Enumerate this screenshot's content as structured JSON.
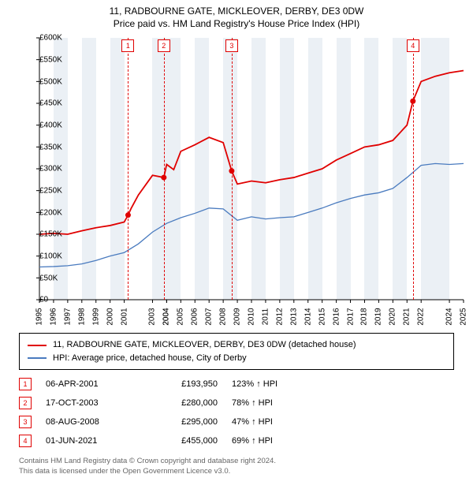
{
  "title_line1": "11, RADBOURNE GATE, MICKLEOVER, DERBY, DE3 0DW",
  "title_line2": "Price paid vs. HM Land Registry's House Price Index (HPI)",
  "chart": {
    "type": "line",
    "background_color": "#ffffff",
    "band_color": "#ebf0f5",
    "axis_color": "#000000",
    "marker_line_color": "#e00000",
    "x_min": 1995,
    "x_max": 2025,
    "y_min": 0,
    "y_max": 600000,
    "y_step": 50000,
    "y_prefix": "£",
    "y_suffix_k": "K",
    "x_ticks": [
      1995,
      1996,
      1997,
      1998,
      1999,
      2000,
      2001,
      2003,
      2004,
      2004,
      2005,
      2006,
      2007,
      2008,
      2009,
      2010,
      2011,
      2012,
      2013,
      2014,
      2015,
      2016,
      2017,
      2018,
      2019,
      2020,
      2021,
      2022,
      2024,
      2025
    ],
    "x_tick_labels": [
      "1995",
      "1996",
      "1997",
      "1998",
      "1999",
      "2000",
      "2001",
      "2003",
      "2004",
      "2004",
      "2005",
      "2006",
      "2007",
      "2008",
      "2009",
      "2010",
      "2011",
      "2012",
      "2013",
      "2014",
      "2015",
      "2016",
      "2017",
      "2018",
      "2019",
      "2020",
      "2021",
      "2022",
      "2024",
      "2025"
    ],
    "series": [
      {
        "key": "price_paid",
        "color": "#e00000",
        "width": 1.8,
        "label": "11, RADBOURNE GATE, MICKLEOVER, DERBY, DE3 0DW (detached house)",
        "data": [
          [
            1995,
            150000
          ],
          [
            1996,
            152000
          ],
          [
            1997,
            150000
          ],
          [
            1998,
            158000
          ],
          [
            1999,
            165000
          ],
          [
            2000,
            170000
          ],
          [
            2001,
            178000
          ],
          [
            2001.27,
            193950
          ],
          [
            2001.5,
            210000
          ],
          [
            2002,
            240000
          ],
          [
            2003,
            285000
          ],
          [
            2003.8,
            280000
          ],
          [
            2004,
            310000
          ],
          [
            2004.5,
            298000
          ],
          [
            2005,
            340000
          ],
          [
            2006,
            355000
          ],
          [
            2007,
            372000
          ],
          [
            2008,
            360000
          ],
          [
            2008.6,
            295000
          ],
          [
            2009,
            265000
          ],
          [
            2010,
            272000
          ],
          [
            2011,
            268000
          ],
          [
            2012,
            275000
          ],
          [
            2013,
            280000
          ],
          [
            2014,
            290000
          ],
          [
            2015,
            300000
          ],
          [
            2016,
            320000
          ],
          [
            2017,
            335000
          ],
          [
            2018,
            350000
          ],
          [
            2019,
            355000
          ],
          [
            2020,
            365000
          ],
          [
            2021,
            400000
          ],
          [
            2021.42,
            455000
          ],
          [
            2022,
            500000
          ],
          [
            2023,
            512000
          ],
          [
            2024,
            520000
          ],
          [
            2025,
            525000
          ]
        ],
        "sale_markers": [
          {
            "x": 2001.27,
            "y": 193950
          },
          {
            "x": 2003.8,
            "y": 280000
          },
          {
            "x": 2008.6,
            "y": 295000
          },
          {
            "x": 2021.42,
            "y": 455000
          }
        ]
      },
      {
        "key": "hpi",
        "color": "#4a7bbf",
        "width": 1.3,
        "label": "HPI: Average price, detached house, City of Derby",
        "data": [
          [
            1995,
            75000
          ],
          [
            1996,
            76000
          ],
          [
            1997,
            78000
          ],
          [
            1998,
            82000
          ],
          [
            1999,
            90000
          ],
          [
            2000,
            100000
          ],
          [
            2001,
            108000
          ],
          [
            2002,
            128000
          ],
          [
            2003,
            155000
          ],
          [
            2004,
            175000
          ],
          [
            2005,
            188000
          ],
          [
            2006,
            198000
          ],
          [
            2007,
            210000
          ],
          [
            2008,
            208000
          ],
          [
            2009,
            182000
          ],
          [
            2010,
            190000
          ],
          [
            2011,
            185000
          ],
          [
            2012,
            188000
          ],
          [
            2013,
            190000
          ],
          [
            2014,
            200000
          ],
          [
            2015,
            210000
          ],
          [
            2016,
            222000
          ],
          [
            2017,
            232000
          ],
          [
            2018,
            240000
          ],
          [
            2019,
            245000
          ],
          [
            2020,
            255000
          ],
          [
            2021,
            280000
          ],
          [
            2022,
            308000
          ],
          [
            2023,
            312000
          ],
          [
            2024,
            310000
          ],
          [
            2025,
            312000
          ]
        ]
      }
    ],
    "event_markers": [
      {
        "n": "1",
        "x": 2001.27
      },
      {
        "n": "2",
        "x": 2003.8
      },
      {
        "n": "3",
        "x": 2008.6
      },
      {
        "n": "4",
        "x": 2021.42
      }
    ]
  },
  "events": [
    {
      "n": "1",
      "date": "06-APR-2001",
      "price": "£193,950",
      "pct": "123% ↑ HPI"
    },
    {
      "n": "2",
      "date": "17-OCT-2003",
      "price": "£280,000",
      "pct": "78% ↑ HPI"
    },
    {
      "n": "3",
      "date": "08-AUG-2008",
      "price": "£295,000",
      "pct": "47% ↑ HPI"
    },
    {
      "n": "4",
      "date": "01-JUN-2021",
      "price": "£455,000",
      "pct": "69% ↑ HPI"
    }
  ],
  "footer_line1": "Contains HM Land Registry data © Crown copyright and database right 2024.",
  "footer_line2": "This data is licensed under the Open Government Licence v3.0.",
  "marker_radius": 3.5
}
